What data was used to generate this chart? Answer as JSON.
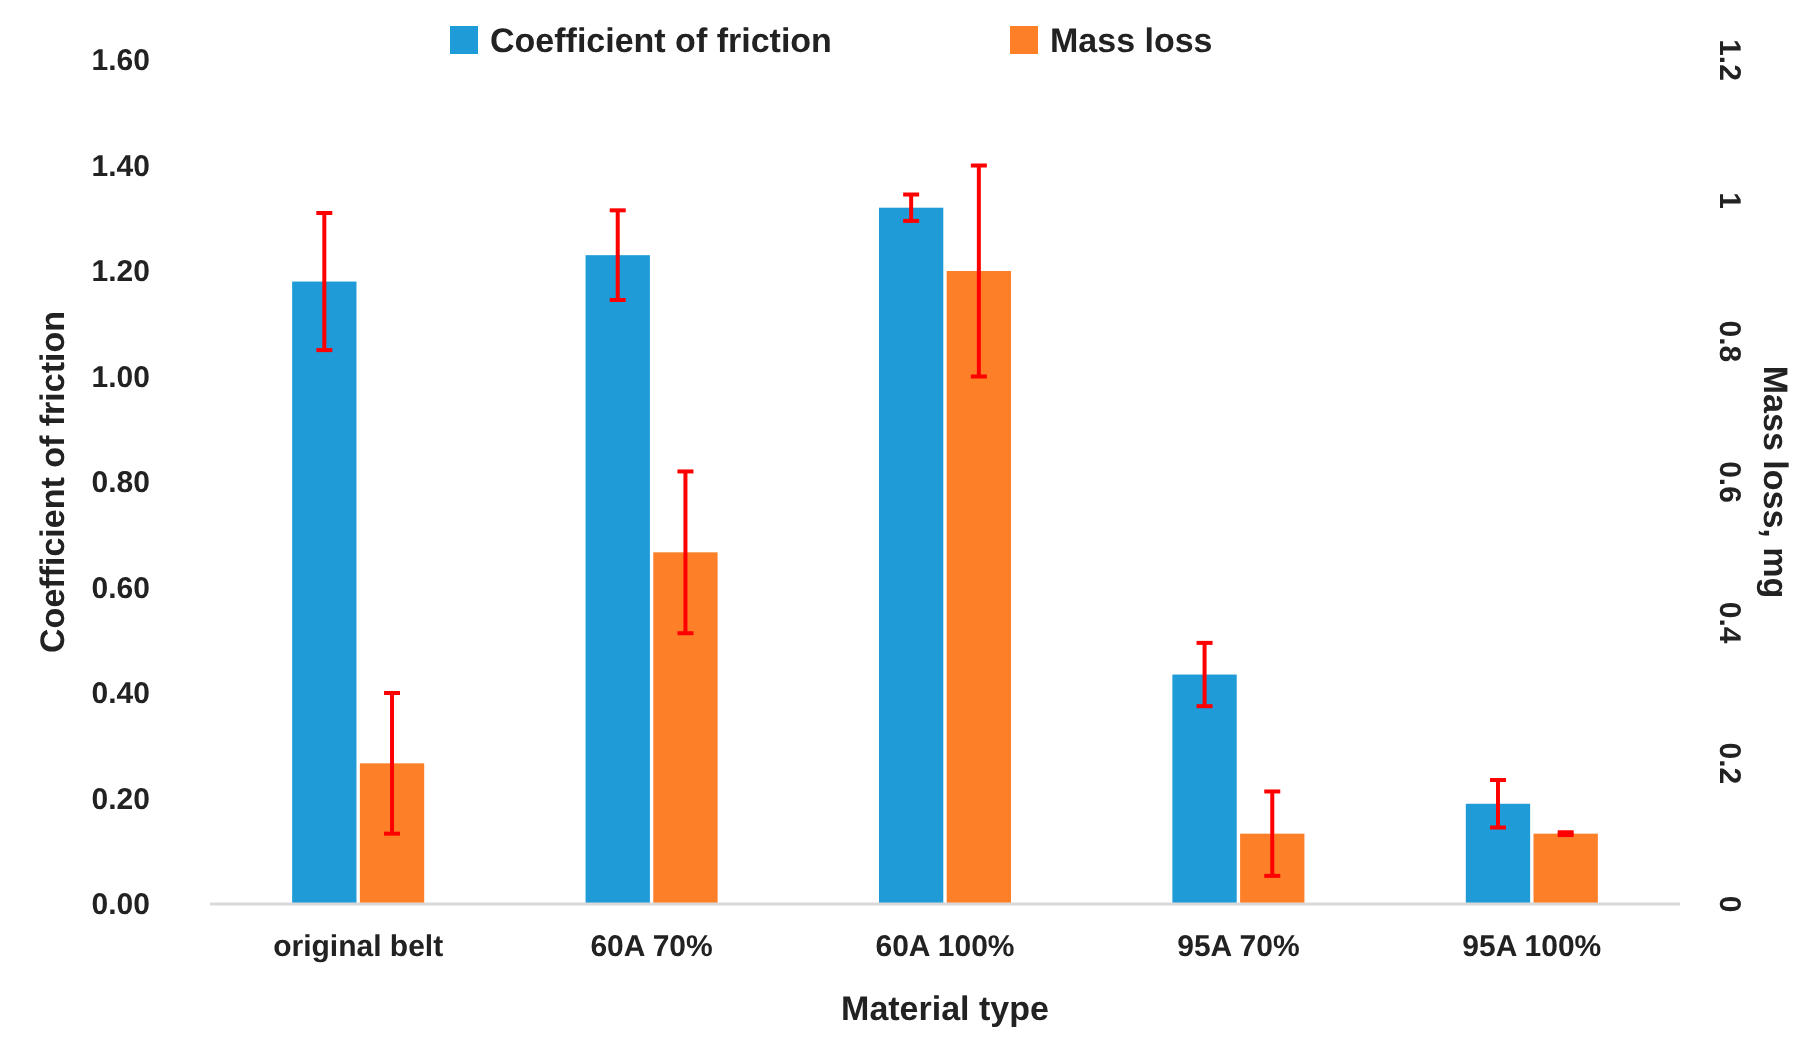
{
  "chart_data": {
    "type": "bar",
    "xlabel": "Material type",
    "ylabel": "Coefficient of friction",
    "y2label": "Mass loss, mg",
    "categories": [
      "original belt",
      "60A 70%",
      "60A 100%",
      "95A 70%",
      "95A 100%"
    ],
    "series": [
      {
        "name": "Coefficient of friction",
        "color": "#1f9bd7",
        "values": [
          1.18,
          1.23,
          1.32,
          0.435,
          0.19
        ],
        "errors": [
          0.13,
          0.085,
          0.025,
          0.06,
          0.045
        ]
      },
      {
        "name": "Mass loss",
        "color": "#fd7f28",
        "values": [
          0.2,
          0.5,
          0.9,
          0.1,
          0.1
        ],
        "errors": [
          0.1,
          0.115,
          0.15,
          0.06,
          0.002
        ],
        "axis": "y2"
      }
    ],
    "ylim": [
      0,
      1.6
    ],
    "yticks": [
      {
        "value": 0,
        "label": "0.00"
      },
      {
        "value": 0.2,
        "label": "0.20"
      },
      {
        "value": 0.4,
        "label": "0.40"
      },
      {
        "value": 0.6,
        "label": "0.60"
      },
      {
        "value": 0.8,
        "label": "0.80"
      },
      {
        "value": 1,
        "label": "1.00"
      },
      {
        "value": 1.2,
        "label": "1.20"
      },
      {
        "value": 1.4,
        "label": "1.40"
      },
      {
        "value": 1.6,
        "label": "1.60"
      }
    ],
    "y2lim": [
      0,
      1.2
    ],
    "y2ticks": [
      0,
      0.2,
      0.4,
      0.6,
      0.8,
      1,
      1.2
    ],
    "legend": "top",
    "grid": false
  }
}
